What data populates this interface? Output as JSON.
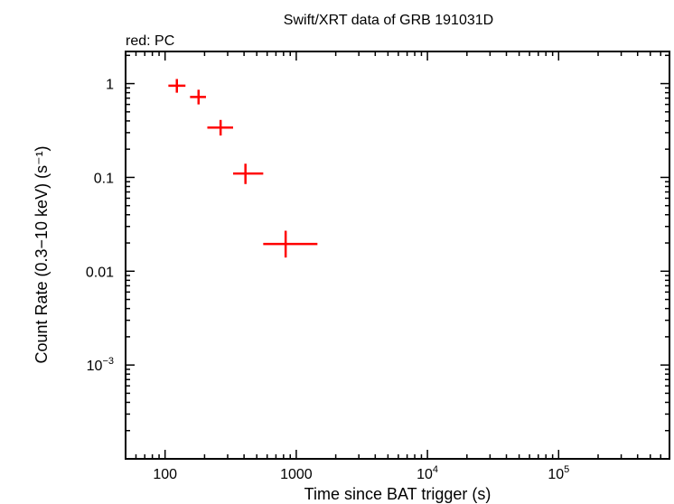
{
  "chart_data": {
    "type": "scatter",
    "title": "Swift/XRT data of GRB 191031D",
    "subtitle": "red: PC",
    "xlabel": "Time since BAT trigger (s)",
    "ylabel": "Count Rate (0.3−10 keV) (s⁻¹)",
    "xscale": "log",
    "yscale": "log",
    "xlim": [
      50,
      700000
    ],
    "ylim": [
      0.0001,
      2.2
    ],
    "grid": false,
    "x_ticks": [
      {
        "value": 100,
        "base": "100",
        "exp": ""
      },
      {
        "value": 1000,
        "base": "1000",
        "exp": ""
      },
      {
        "value": 10000,
        "base": "10",
        "exp": "4"
      },
      {
        "value": 100000,
        "base": "10",
        "exp": "5"
      }
    ],
    "y_ticks": [
      {
        "value": 1,
        "base": "1",
        "exp": ""
      },
      {
        "value": 0.1,
        "base": "0.1",
        "exp": ""
      },
      {
        "value": 0.01,
        "base": "0.01",
        "exp": ""
      },
      {
        "value": 0.001,
        "base": "10",
        "exp": "−3"
      }
    ],
    "series": [
      {
        "color": "#ff0000",
        "points": [
          {
            "x": 123,
            "xlo": 106,
            "xhi": 143,
            "y": 0.95,
            "ylo": 0.8,
            "yhi": 1.12
          },
          {
            "x": 180,
            "xlo": 155,
            "xhi": 205,
            "y": 0.72,
            "ylo": 0.6,
            "yhi": 0.86
          },
          {
            "x": 265,
            "xlo": 210,
            "xhi": 330,
            "y": 0.34,
            "ylo": 0.28,
            "yhi": 0.41
          },
          {
            "x": 410,
            "xlo": 330,
            "xhi": 560,
            "y": 0.11,
            "ylo": 0.085,
            "yhi": 0.14
          },
          {
            "x": 830,
            "xlo": 560,
            "xhi": 1450,
            "y": 0.0195,
            "ylo": 0.014,
            "yhi": 0.027
          }
        ]
      }
    ]
  }
}
